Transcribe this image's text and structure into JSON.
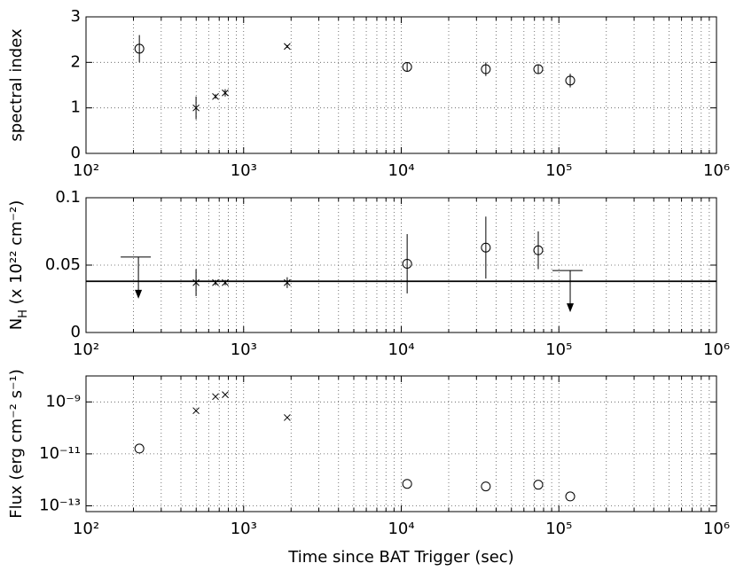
{
  "chart_data": [
    {
      "type": "scatter",
      "xscale": "log",
      "yscale": "linear",
      "grid": true,
      "ylabel": [
        "spectral index"
      ],
      "xlim": [
        100,
        1000000
      ],
      "xticks": [
        {
          "value": 100,
          "label": "10²"
        },
        {
          "value": 1000,
          "label": "10³"
        },
        {
          "value": 10000,
          "label": "10⁴"
        },
        {
          "value": 100000,
          "label": "10⁵"
        },
        {
          "value": 1000000,
          "label": "10⁶"
        }
      ],
      "ylim": [
        0,
        3
      ],
      "yticks": [
        0,
        1,
        2,
        3
      ],
      "series": [
        {
          "marker": "circle",
          "color": "#000000",
          "x": [
            218,
            10900,
            34400,
            74000,
            118000
          ],
          "values": [
            2.3,
            1.9,
            1.85,
            1.85,
            1.6
          ],
          "errors": [
            0.3,
            0.1,
            0.15,
            0.1,
            0.15
          ]
        },
        {
          "marker": "cross",
          "color": "#000000",
          "x": [
            499,
            663,
            764,
            1890
          ],
          "values": [
            1.0,
            1.25,
            1.33,
            2.35
          ],
          "errors": [
            0.25,
            0.05,
            0.08,
            0.03
          ]
        }
      ]
    },
    {
      "type": "scatter",
      "xscale": "log",
      "yscale": "linear",
      "grid": true,
      "ylabel": [
        "N",
        "H",
        " (x 10²² cm⁻²)"
      ],
      "ylabel_subscript": [
        1
      ],
      "xlim": [
        100,
        1000000
      ],
      "xticks": [
        {
          "value": 100,
          "label": "10²"
        },
        {
          "value": 1000,
          "label": "10³"
        },
        {
          "value": 10000,
          "label": "10⁴"
        },
        {
          "value": 100000,
          "label": "10⁵"
        },
        {
          "value": 1000000,
          "label": "10⁶"
        }
      ],
      "ylim": [
        0,
        0.1
      ],
      "yticks": [
        0,
        0.05,
        0.1
      ],
      "hlines": [
        0.038
      ],
      "series": [
        {
          "marker": "circle",
          "color": "#000000",
          "x": [
            10900,
            34400,
            74000
          ],
          "values": [
            0.051,
            0.063,
            0.061
          ],
          "errors": [
            0.022,
            0.023,
            0.014
          ]
        },
        {
          "marker": "cross",
          "color": "#000000",
          "x": [
            499,
            663,
            764,
            1890
          ],
          "values": [
            0.037,
            0.037,
            0.037,
            0.037
          ],
          "errors": [
            0.01,
            0.002,
            0.002,
            0.004
          ]
        },
        {
          "marker": "upper-limit",
          "color": "#000000",
          "x": [
            215,
            118000
          ],
          "values": [
            0.056,
            0.046
          ]
        }
      ]
    },
    {
      "type": "scatter",
      "xscale": "log",
      "yscale": "log",
      "grid": true,
      "ylabel": [
        "Flux (erg cm⁻² s⁻¹)"
      ],
      "xlabel": "Time since BAT Trigger (sec)",
      "xlim": [
        100,
        1000000
      ],
      "xticks": [
        {
          "value": 100,
          "label": "10²"
        },
        {
          "value": 1000,
          "label": "10³"
        },
        {
          "value": 10000,
          "label": "10⁴"
        },
        {
          "value": 100000,
          "label": "10⁵"
        },
        {
          "value": 1000000,
          "label": "10⁶"
        }
      ],
      "ylim": [
        6e-14,
        1e-08
      ],
      "yticks": [
        {
          "value": 1e-13,
          "label": "10⁻¹³"
        },
        {
          "value": 1e-11,
          "label": "10⁻¹¹"
        },
        {
          "value": 1e-09,
          "label": "10⁻⁹"
        }
      ],
      "series": [
        {
          "marker": "circle",
          "color": "#000000",
          "x": [
            218,
            10900,
            34400,
            74000,
            118000
          ],
          "values": [
            1.6e-11,
            7e-13,
            5.6e-13,
            6.5e-13,
            2.3e-13
          ]
        },
        {
          "marker": "cross",
          "color": "#000000",
          "x": [
            499,
            663,
            764,
            1890
          ],
          "values": [
            4.6e-10,
            1.6e-09,
            1.9e-09,
            2.5e-10
          ]
        }
      ]
    }
  ]
}
